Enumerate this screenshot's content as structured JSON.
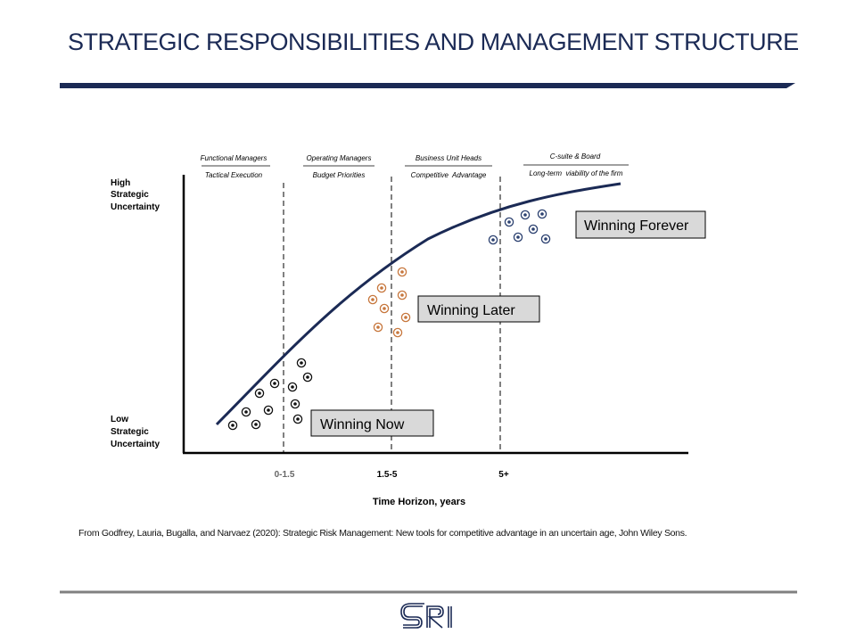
{
  "title": "STRATEGIC RESPONSIBILITIES AND MANAGEMENT STRUCTURE",
  "colors": {
    "navy": "#1b2a55",
    "black_dots": "#111111",
    "orange_dots": "#c7773d",
    "blue_dots": "#2c4170",
    "label_box": "#d9d9d9"
  },
  "y_axis": {
    "high_label": [
      "High",
      "Strategic",
      "Uncertainty"
    ],
    "low_label": [
      "Low",
      "Strategic",
      "Uncertainty"
    ]
  },
  "x_axis": {
    "title": "Time Horizon, years",
    "ticks": [
      "0-1.5",
      "1.5-5",
      "5+"
    ]
  },
  "columns": [
    {
      "role": "Functional Managers",
      "focus": "Tactical Execution"
    },
    {
      "role": "Operating Managers",
      "focus": "Budget Priorities"
    },
    {
      "role": "Business Unit Heads",
      "focus": "Competitive  Advantage"
    },
    {
      "role": "C-suite & Board",
      "focus": "Long-term  viability of the firm"
    }
  ],
  "zones": [
    {
      "label": "Winning Now",
      "dot_color": "#111111"
    },
    {
      "label": "Winning Later",
      "dot_color": "#c7773d"
    },
    {
      "label": "Winning Forever",
      "dot_color": "#2c4170"
    }
  ],
  "citation": "From Godfrey, Lauria, Bugalla, and Narvaez (2020): Strategic Risk Management: New tools for competitive advantage in an uncertain age, John Wiley Sons.",
  "logo": {
    "text": "SRI",
    "icon": "sri-logo-icon"
  }
}
